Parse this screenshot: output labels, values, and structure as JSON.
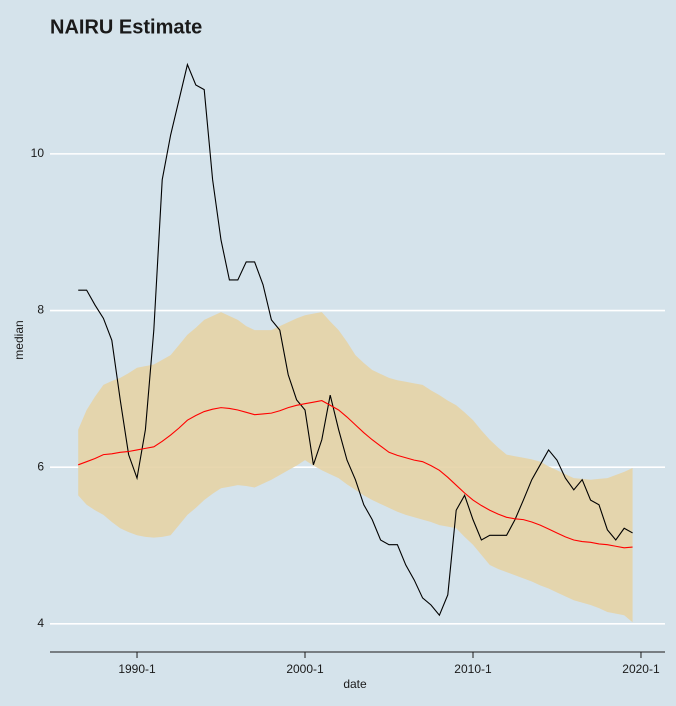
{
  "chart_data": {
    "type": "line",
    "title": "NAIRU Estimate",
    "x_label": "date",
    "y_label": "median",
    "x": [
      1986.5,
      1987,
      1987.5,
      1988,
      1988.5,
      1989,
      1989.5,
      1990,
      1990.5,
      1991,
      1991.5,
      1992,
      1992.5,
      1993,
      1993.5,
      1994,
      1994.5,
      1995,
      1995.5,
      1996,
      1996.5,
      1997,
      1997.5,
      1998,
      1998.5,
      1999,
      1999.5,
      2000,
      2000.5,
      2001,
      2001.5,
      2002,
      2002.5,
      2003,
      2003.5,
      2004,
      2004.5,
      2005,
      2005.5,
      2006,
      2006.5,
      2007,
      2007.5,
      2008,
      2008.5,
      2009,
      2009.5,
      2010,
      2010.5,
      2011,
      2011.5,
      2012,
      2012.5,
      2013,
      2013.5,
      2014,
      2014.5,
      2015,
      2015.5,
      2016,
      2016.5,
      2017,
      2017.5,
      2018,
      2018.5,
      2019,
      2019.5
    ],
    "band": {
      "color": "#e6d3a6",
      "upper": [
        6.48,
        6.73,
        6.9,
        7.05,
        7.1,
        7.14,
        7.2,
        7.27,
        7.29,
        7.31,
        7.37,
        7.43,
        7.56,
        7.69,
        7.78,
        7.88,
        7.93,
        7.98,
        7.93,
        7.88,
        7.8,
        7.75,
        7.75,
        7.75,
        7.8,
        7.85,
        7.9,
        7.94,
        7.96,
        7.98,
        7.86,
        7.75,
        7.6,
        7.43,
        7.33,
        7.24,
        7.19,
        7.14,
        7.11,
        7.09,
        7.07,
        7.05,
        6.98,
        6.92,
        6.85,
        6.79,
        6.7,
        6.6,
        6.47,
        6.35,
        6.25,
        6.16,
        6.14,
        6.12,
        6.1,
        6.07,
        6.01,
        5.96,
        5.91,
        5.86,
        5.85,
        5.84,
        5.85,
        5.86,
        5.9,
        5.94,
        5.99
      ],
      "lower": [
        5.64,
        5.52,
        5.45,
        5.39,
        5.3,
        5.22,
        5.17,
        5.13,
        5.11,
        5.1,
        5.11,
        5.13,
        5.26,
        5.39,
        5.48,
        5.58,
        5.66,
        5.73,
        5.75,
        5.77,
        5.76,
        5.74,
        5.79,
        5.84,
        5.9,
        5.96,
        6.02,
        6.09,
        6.02,
        5.96,
        5.91,
        5.86,
        5.78,
        5.71,
        5.64,
        5.58,
        5.53,
        5.48,
        5.43,
        5.39,
        5.36,
        5.33,
        5.3,
        5.26,
        5.24,
        5.22,
        5.11,
        5.01,
        4.88,
        4.75,
        4.7,
        4.66,
        4.62,
        4.58,
        4.54,
        4.49,
        4.45,
        4.4,
        4.35,
        4.3,
        4.27,
        4.24,
        4.2,
        4.15,
        4.13,
        4.11,
        4.02
      ]
    },
    "series": [
      {
        "color": "#000000",
        "values": [
          8.26,
          8.26,
          8.07,
          7.9,
          7.62,
          6.86,
          6.16,
          5.86,
          6.48,
          7.75,
          9.67,
          10.24,
          10.69,
          11.14,
          10.88,
          10.82,
          9.67,
          8.9,
          8.39,
          8.39,
          8.62,
          8.62,
          8.33,
          7.88,
          7.75,
          7.18,
          6.86,
          6.73,
          6.03,
          6.35,
          6.92,
          6.48,
          6.09,
          5.84,
          5.52,
          5.33,
          5.07,
          5.01,
          5.01,
          4.75,
          4.56,
          4.33,
          4.24,
          4.11,
          4.37,
          5.45,
          5.64,
          5.33,
          5.07,
          5.13,
          5.13,
          5.13,
          5.33,
          5.58,
          5.84,
          6.03,
          6.22,
          6.09,
          5.86,
          5.71,
          5.84,
          5.58,
          5.52,
          5.2,
          5.07,
          5.22,
          5.16
        ]
      },
      {
        "color": "#ff0000",
        "values": [
          6.03,
          6.07,
          6.11,
          6.16,
          6.17,
          6.19,
          6.2,
          6.22,
          6.24,
          6.26,
          6.33,
          6.41,
          6.5,
          6.6,
          6.66,
          6.71,
          6.74,
          6.76,
          6.75,
          6.73,
          6.7,
          6.67,
          6.68,
          6.69,
          6.72,
          6.76,
          6.79,
          6.81,
          6.83,
          6.85,
          6.79,
          6.73,
          6.64,
          6.54,
          6.44,
          6.35,
          6.27,
          6.19,
          6.15,
          6.12,
          6.09,
          6.07,
          6.02,
          5.96,
          5.87,
          5.77,
          5.67,
          5.58,
          5.51,
          5.45,
          5.4,
          5.36,
          5.34,
          5.33,
          5.3,
          5.26,
          5.21,
          5.16,
          5.11,
          5.07,
          5.05,
          5.04,
          5.02,
          5.01,
          4.99,
          4.97,
          4.98
        ]
      }
    ],
    "xlim": [
      1984.82,
      2021.43
    ],
    "ylim": [
      3.64,
      11.39
    ],
    "xticks": [
      {
        "value": 1990,
        "label": "1990-1"
      },
      {
        "value": 2000,
        "label": "2000-1"
      },
      {
        "value": 2010,
        "label": "2010-1"
      },
      {
        "value": 2020,
        "label": "2020-1"
      }
    ],
    "yticks": [
      4,
      6,
      8,
      10
    ],
    "grid": true
  }
}
